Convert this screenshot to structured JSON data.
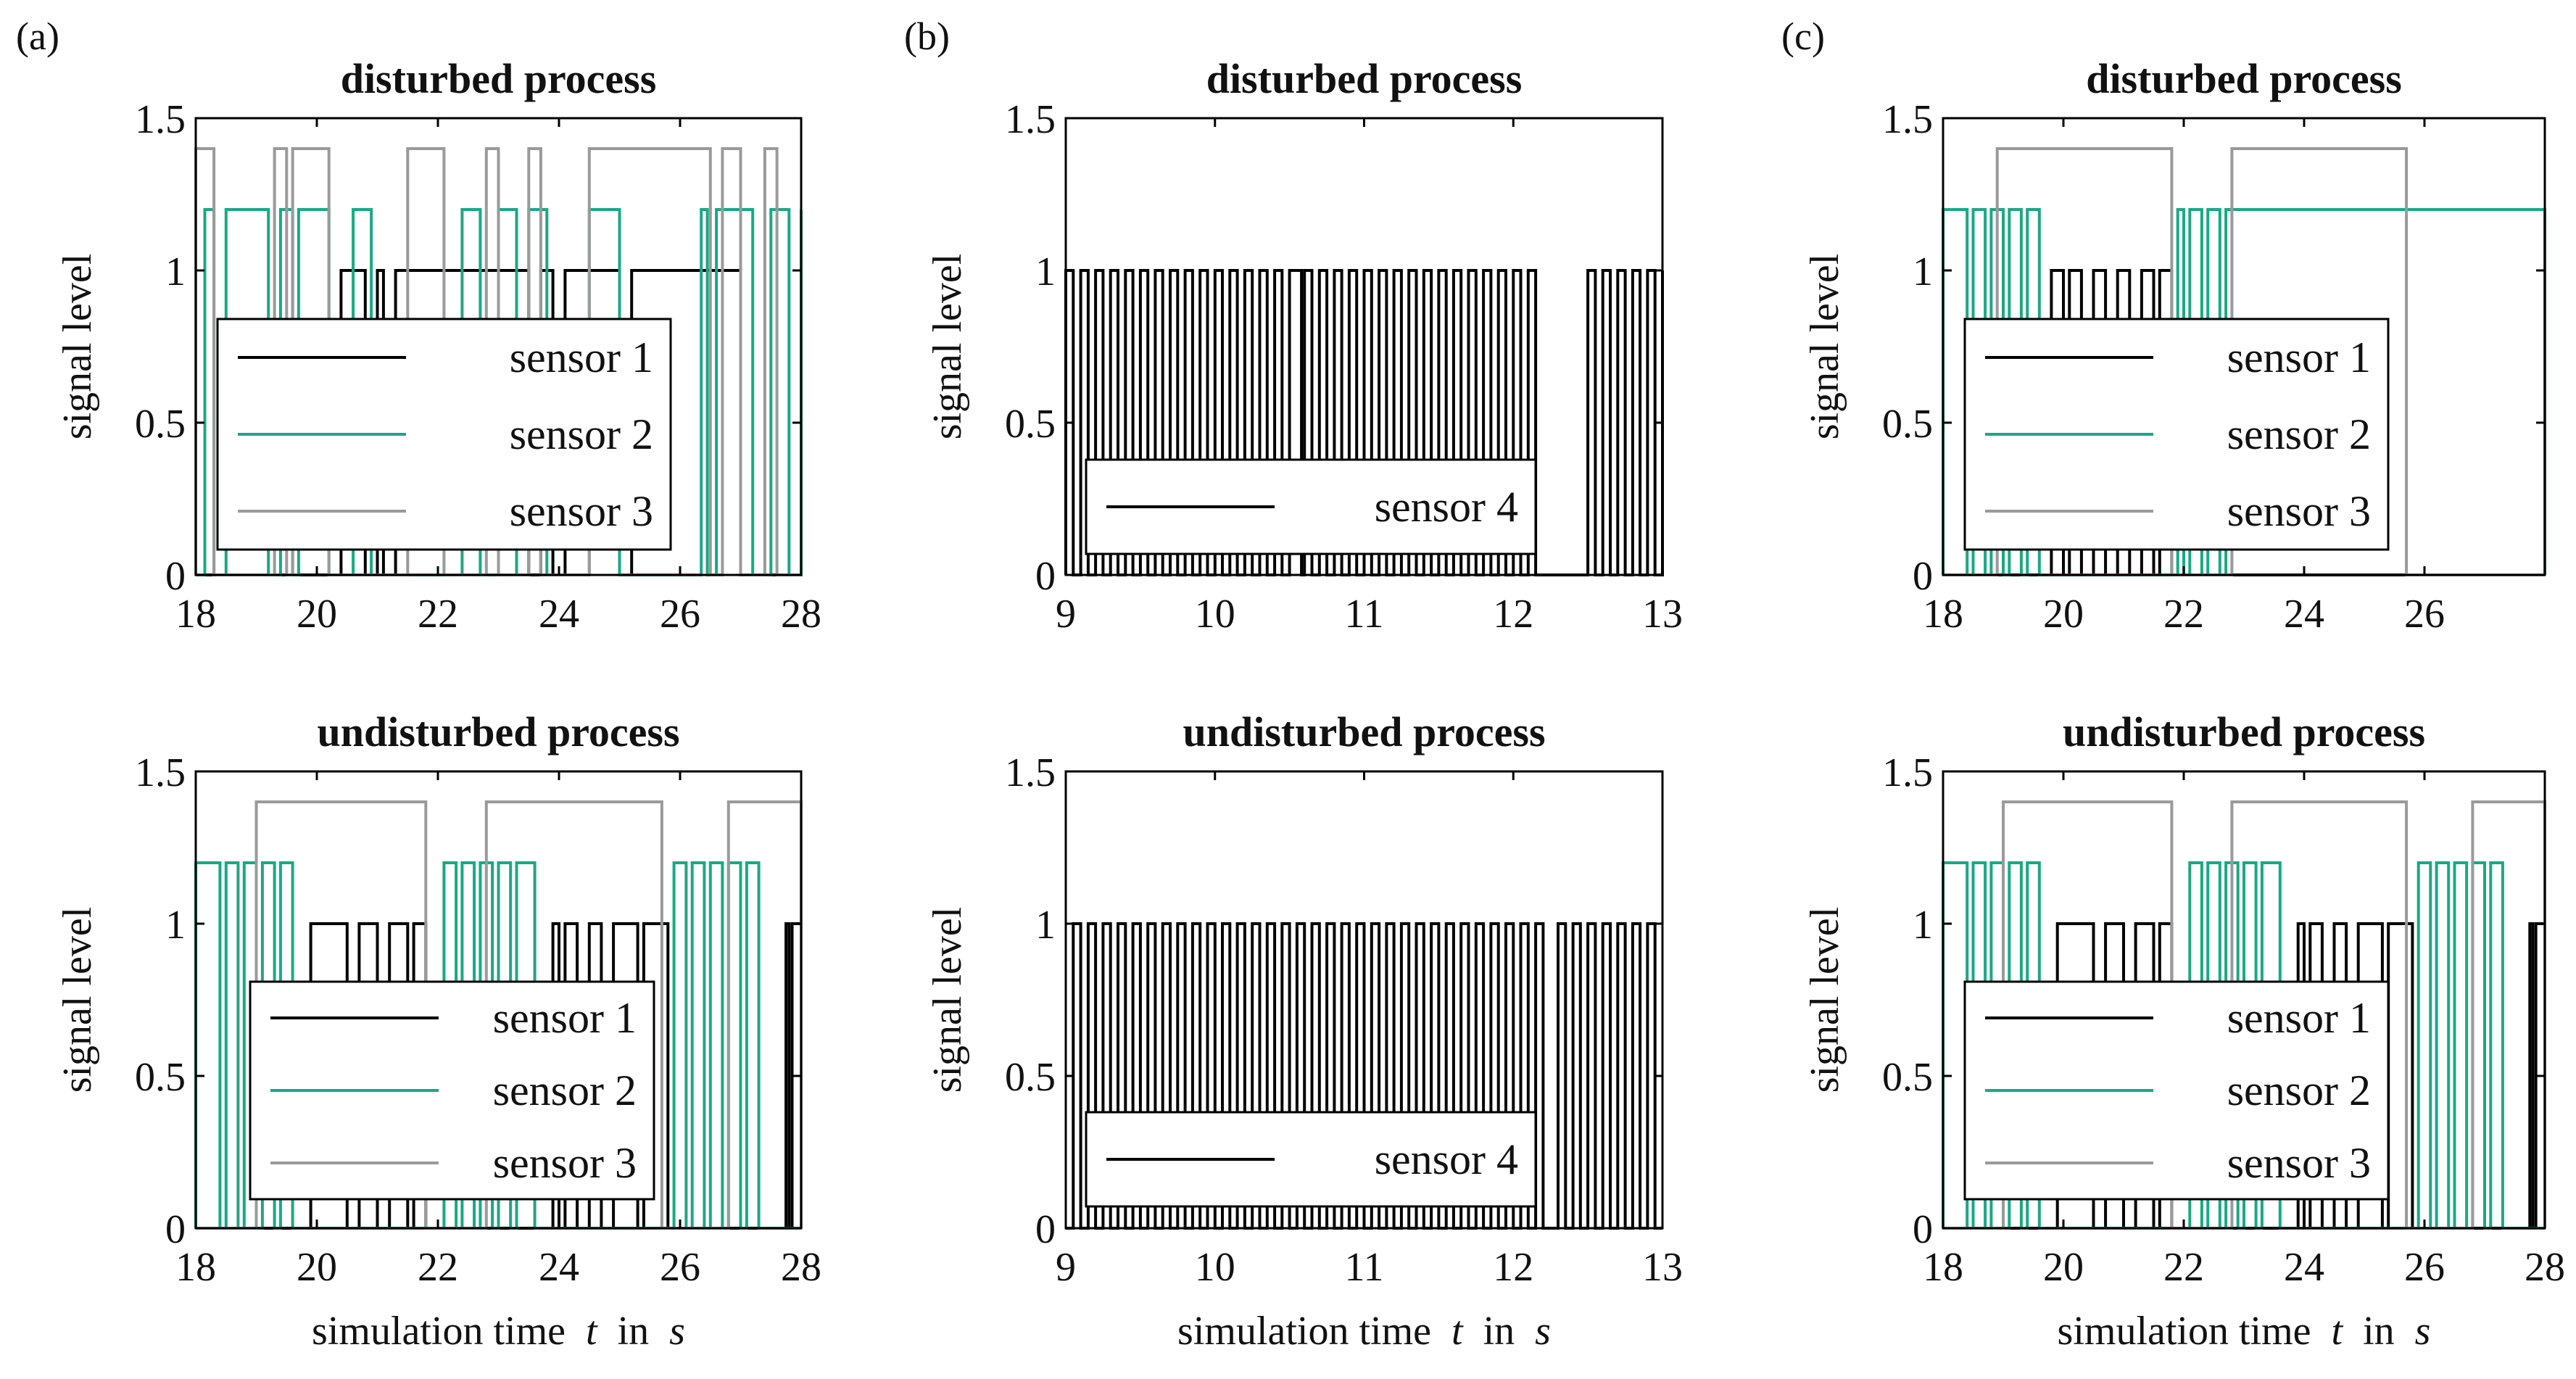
{
  "colors": {
    "sensor1": "#000000",
    "sensor2": "#1aa884",
    "sensor3": "#9a9a9a",
    "sensor4": "#000000"
  },
  "panels": [
    {
      "id": "a",
      "letter": "(a)"
    },
    {
      "id": "b",
      "letter": "(b)"
    },
    {
      "id": "c",
      "letter": "(c)"
    }
  ],
  "xlabel": {
    "prefix": "simulation time",
    "variable": "t",
    "middle": "in",
    "unit": "s"
  },
  "chart_data": [
    {
      "id": "a-top",
      "panel": "a",
      "row": 0,
      "type": "line",
      "title": "disturbed process",
      "ylabel": "signal level",
      "xlim": [
        18,
        28
      ],
      "ylim": [
        0,
        1.5
      ],
      "xticks": [
        "18",
        "20",
        "22",
        "24",
        "26",
        "28"
      ],
      "yticks": [
        "0",
        "0.5",
        "1",
        "1.5"
      ],
      "legend": [
        "sensor 1",
        "sensor 2",
        "sensor 3"
      ],
      "series": [
        {
          "name": "sensor 1",
          "color": "#000000",
          "level": 1.0,
          "edges": [
            20.4,
            20.8,
            21.0,
            21.1,
            21.3,
            23.5,
            23.7,
            23.9,
            24.1,
            25.0,
            25.2,
            27.0
          ]
        },
        {
          "name": "sensor 2",
          "color": "#1aa884",
          "level": 1.2,
          "edges": [
            18.15,
            18.3,
            18.5,
            19.2,
            19.4,
            19.6,
            19.7,
            20.2,
            20.6,
            20.9,
            22.4,
            22.7,
            23.0,
            23.3,
            23.5,
            23.8,
            24.5,
            25.0,
            26.35,
            26.45,
            26.6,
            27.2,
            27.5,
            27.8,
            28.0
          ]
        },
        {
          "name": "sensor 3",
          "color": "#9a9a9a",
          "level": 1.4,
          "edges": [
            18.0,
            18.3,
            19.3,
            19.5,
            19.6,
            20.2,
            21.5,
            22.1,
            22.8,
            23.0,
            23.5,
            23.7,
            24.5,
            26.5,
            26.7,
            27.0,
            27.4,
            27.6
          ]
        }
      ]
    },
    {
      "id": "a-bottom",
      "panel": "a",
      "row": 1,
      "type": "line",
      "title": "undisturbed process",
      "ylabel": "signal level",
      "xlim": [
        18,
        28
      ],
      "ylim": [
        0,
        1.5
      ],
      "xticks": [
        "18",
        "20",
        "22",
        "24",
        "26",
        "28"
      ],
      "yticks": [
        "0",
        "0.5",
        "1",
        "1.5"
      ],
      "legend": [
        "sensor 1",
        "sensor 2",
        "sensor 3"
      ],
      "series": [
        {
          "name": "sensor 1",
          "color": "#000000",
          "level": 1.0,
          "edges": [
            19.9,
            20.5,
            20.7,
            21.0,
            21.2,
            21.5,
            21.6,
            21.8,
            23.9,
            24.0,
            24.1,
            24.3,
            24.5,
            24.7,
            24.9,
            25.3,
            25.4,
            25.8,
            27.75,
            27.8,
            27.85,
            28.0
          ]
        },
        {
          "name": "sensor 2",
          "color": "#1aa884",
          "level": 1.2,
          "edges": [
            18.0,
            18.4,
            18.5,
            18.7,
            18.8,
            19.0,
            19.1,
            19.3,
            19.4,
            19.6,
            22.1,
            22.3,
            22.4,
            22.6,
            22.7,
            22.9,
            23.0,
            23.2,
            23.3,
            23.6,
            25.9,
            26.1,
            26.2,
            26.4,
            26.5,
            26.7,
            26.8,
            27.0,
            27.1,
            27.3
          ]
        },
        {
          "name": "sensor 3",
          "color": "#9a9a9a",
          "level": 1.4,
          "edges": [
            19.0,
            21.8,
            22.8,
            25.7,
            26.8,
            28.0
          ]
        }
      ]
    },
    {
      "id": "b-top",
      "panel": "b",
      "row": 0,
      "type": "line",
      "title": "disturbed process",
      "ylabel": "signal level",
      "xlim": [
        9,
        13
      ],
      "ylim": [
        0,
        1.5
      ],
      "xticks": [
        "9",
        "10",
        "11",
        "12",
        "13"
      ],
      "yticks": [
        "0",
        "0.5",
        "1",
        "1.5"
      ],
      "legend": [
        "sensor 4"
      ],
      "series": [
        {
          "name": "sensor 4",
          "color": "#000000",
          "level": 1.0,
          "edges": [
            9.0,
            9.05,
            9.1,
            9.15,
            9.2,
            9.25,
            9.3,
            9.35,
            9.4,
            9.45,
            9.5,
            9.55,
            9.6,
            9.65,
            9.7,
            9.75,
            9.8,
            9.85,
            9.9,
            9.95,
            10.0,
            10.05,
            10.1,
            10.15,
            10.2,
            10.25,
            10.3,
            10.35,
            10.4,
            10.45,
            10.5,
            10.58,
            10.6,
            10.65,
            10.7,
            10.75,
            10.8,
            10.85,
            10.9,
            10.95,
            11.0,
            11.05,
            11.1,
            11.15,
            11.2,
            11.25,
            11.3,
            11.35,
            11.4,
            11.45,
            11.5,
            11.55,
            11.6,
            11.65,
            11.7,
            11.75,
            11.8,
            11.85,
            11.9,
            11.95,
            12.0,
            12.05,
            12.1,
            12.15,
            12.5,
            12.55,
            12.6,
            12.65,
            12.7,
            12.75,
            12.8,
            12.85,
            12.9,
            12.95,
            13.0
          ]
        }
      ]
    },
    {
      "id": "b-bottom",
      "panel": "b",
      "row": 1,
      "type": "line",
      "title": "undisturbed process",
      "ylabel": "signal level",
      "xlim": [
        9,
        13
      ],
      "ylim": [
        0,
        1.5
      ],
      "xticks": [
        "9",
        "10",
        "11",
        "12",
        "13"
      ],
      "yticks": [
        "0",
        "0.5",
        "1",
        "1.5"
      ],
      "legend": [
        "sensor 4"
      ],
      "series": [
        {
          "name": "sensor 4",
          "color": "#000000",
          "level": 1.0,
          "edges": [
            9.05,
            9.1,
            9.15,
            9.2,
            9.25,
            9.3,
            9.35,
            9.4,
            9.45,
            9.5,
            9.55,
            9.6,
            9.65,
            9.7,
            9.75,
            9.8,
            9.85,
            9.9,
            9.95,
            10.0,
            10.05,
            10.1,
            10.15,
            10.2,
            10.25,
            10.3,
            10.35,
            10.4,
            10.45,
            10.5,
            10.55,
            10.6,
            10.65,
            10.7,
            10.75,
            10.8,
            10.85,
            10.9,
            10.95,
            11.0,
            11.05,
            11.1,
            11.15,
            11.2,
            11.25,
            11.3,
            11.35,
            11.4,
            11.45,
            11.5,
            11.55,
            11.6,
            11.65,
            11.7,
            11.75,
            11.8,
            11.85,
            11.9,
            11.95,
            12.0,
            12.05,
            12.1,
            12.15,
            12.2,
            12.3,
            12.35,
            12.4,
            12.45,
            12.5,
            12.55,
            12.6,
            12.65,
            12.7,
            12.75,
            12.8,
            12.85,
            12.9,
            12.95
          ]
        }
      ]
    },
    {
      "id": "c-top",
      "panel": "c",
      "row": 0,
      "type": "line",
      "title": "disturbed process",
      "ylabel": "signal level",
      "xlim": [
        18,
        28
      ],
      "ylim": [
        0,
        1.5
      ],
      "xticks": [
        "18",
        "20",
        "22",
        "24",
        "26"
      ],
      "yticks": [
        "0",
        "0.5",
        "1",
        "1.5"
      ],
      "legend": [
        "sensor 1",
        "sensor 2",
        "sensor 3"
      ],
      "series": [
        {
          "name": "sensor 1",
          "color": "#000000",
          "level": 1.0,
          "edges": [
            19.8,
            20.0,
            20.1,
            20.3,
            20.5,
            20.7,
            20.9,
            21.1,
            21.3,
            21.5,
            21.6,
            21.8
          ]
        },
        {
          "name": "sensor 2",
          "color": "#1aa884",
          "level": 1.2,
          "edges": [
            18.0,
            18.4,
            18.5,
            18.7,
            18.8,
            19.0,
            19.1,
            19.3,
            19.4,
            19.6,
            21.9,
            22.0,
            22.1,
            22.3,
            22.4,
            22.6,
            22.7,
            28.0
          ]
        },
        {
          "name": "sensor 3",
          "color": "#9a9a9a",
          "level": 1.4,
          "edges": [
            18.9,
            21.8,
            22.8,
            25.7
          ]
        }
      ]
    },
    {
      "id": "c-bottom",
      "panel": "c",
      "row": 1,
      "type": "line",
      "title": "undisturbed process",
      "ylabel": "signal level",
      "xlim": [
        18,
        28
      ],
      "ylim": [
        0,
        1.5
      ],
      "xticks": [
        "18",
        "20",
        "22",
        "24",
        "26",
        "28"
      ],
      "yticks": [
        "0",
        "0.5",
        "1",
        "1.5"
      ],
      "legend": [
        "sensor 1",
        "sensor 2",
        "sensor 3"
      ],
      "series": [
        {
          "name": "sensor 1",
          "color": "#000000",
          "level": 1.0,
          "edges": [
            19.9,
            20.5,
            20.7,
            21.0,
            21.2,
            21.5,
            21.6,
            21.8,
            23.9,
            24.0,
            24.1,
            24.3,
            24.5,
            24.7,
            24.9,
            25.3,
            25.4,
            25.8,
            27.75,
            27.8,
            27.85,
            28.0
          ]
        },
        {
          "name": "sensor 2",
          "color": "#1aa884",
          "level": 1.2,
          "edges": [
            18.0,
            18.4,
            18.5,
            18.7,
            18.8,
            19.0,
            19.1,
            19.3,
            19.4,
            19.6,
            22.1,
            22.3,
            22.4,
            22.6,
            22.7,
            22.9,
            23.0,
            23.2,
            23.3,
            23.6,
            25.9,
            26.1,
            26.2,
            26.4,
            26.5,
            26.7,
            26.8,
            27.0,
            27.1,
            27.3
          ]
        },
        {
          "name": "sensor 3",
          "color": "#9a9a9a",
          "level": 1.4,
          "edges": [
            19.0,
            21.8,
            22.8,
            25.7,
            26.8,
            28.0
          ]
        }
      ]
    }
  ]
}
